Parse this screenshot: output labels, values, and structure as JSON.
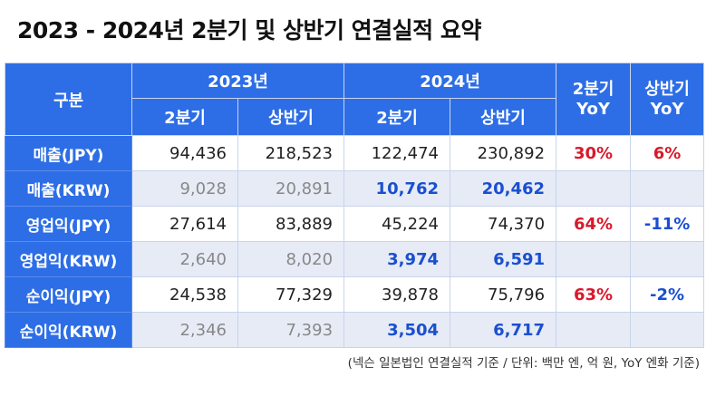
{
  "title": "2023 - 2024년 2분기 및 상반기 연결실적 요약",
  "header": {
    "category": "구분",
    "year_2023": "2023년",
    "year_2024": "2024년",
    "q2": "2분기",
    "h1": "상반기",
    "q2_yoy_line1": "2분기",
    "q2_yoy_line2": "YoY",
    "h1_yoy_line1": "상반기",
    "h1_yoy_line2": "YoY"
  },
  "rows": [
    {
      "label": "매출(JPY)",
      "q2_2023": "94,436",
      "h1_2023": "218,523",
      "q2_2024": "122,474",
      "h1_2024": "230,892",
      "q2_yoy": "30%",
      "h1_yoy": "6%"
    },
    {
      "label": "매출(KRW)",
      "q2_2023": "9,028",
      "h1_2023": "20,891",
      "q2_2024": "10,762",
      "h1_2024": "20,462",
      "q2_yoy": "",
      "h1_yoy": ""
    },
    {
      "label": "영업익(JPY)",
      "q2_2023": "27,614",
      "h1_2023": "83,889",
      "q2_2024": "45,224",
      "h1_2024": "74,370",
      "q2_yoy": "64%",
      "h1_yoy": "-11%"
    },
    {
      "label": "영업익(KRW)",
      "q2_2023": "2,640",
      "h1_2023": "8,020",
      "q2_2024": "3,974",
      "h1_2024": "6,591",
      "q2_yoy": "",
      "h1_yoy": ""
    },
    {
      "label": "순이익(JPY)",
      "q2_2023": "24,538",
      "h1_2023": "77,329",
      "q2_2024": "39,878",
      "h1_2024": "75,796",
      "q2_yoy": "63%",
      "h1_yoy": "-2%"
    },
    {
      "label": "순이익(KRW)",
      "q2_2023": "2,346",
      "h1_2023": "7,393",
      "q2_2024": "3,504",
      "h1_2024": "6,717",
      "q2_yoy": "",
      "h1_yoy": ""
    }
  ],
  "note": "(넥슨 일본법인 연결실적 기준 / 단위: 백만 엔, 억 원, YoY 엔화 기준)",
  "colors": {
    "header_bg": "#2d6ee6",
    "positive": "#d9192b",
    "negative": "#1a4fd0",
    "krw_row_bg": "#e6ebf6"
  }
}
